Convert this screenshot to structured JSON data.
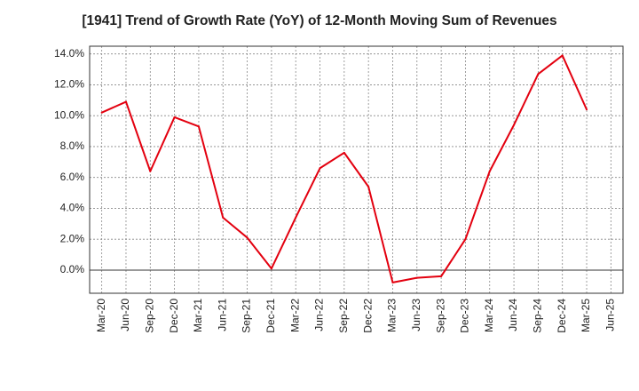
{
  "chart_data": {
    "type": "line",
    "title": "[1941]  Trend of Growth Rate (YoY) of 12-Month Moving Sum of Revenues",
    "xlabel": "",
    "ylabel": "",
    "x_ticks": [
      "Mar-20",
      "Jun-20",
      "Sep-20",
      "Dec-20",
      "Mar-21",
      "Jun-21",
      "Sep-21",
      "Dec-21",
      "Mar-22",
      "Jun-22",
      "Sep-22",
      "Dec-22",
      "Mar-23",
      "Jun-23",
      "Sep-23",
      "Dec-23",
      "Mar-24",
      "Jun-24",
      "Sep-24",
      "Dec-24",
      "Mar-25",
      "Jun-25"
    ],
    "y_ticks": [
      "0.0%",
      "2.0%",
      "4.0%",
      "6.0%",
      "8.0%",
      "10.0%",
      "12.0%",
      "14.0%"
    ],
    "ylim": [
      -1.5,
      14.5
    ],
    "grid": true,
    "series": [
      {
        "color": "#e3000f",
        "x": [
          "Mar-20",
          "Jun-20",
          "Sep-20",
          "Dec-20",
          "Mar-21",
          "Jun-21",
          "Sep-21",
          "Dec-21",
          "Mar-22",
          "Jun-22",
          "Sep-22",
          "Dec-22",
          "Mar-23",
          "Jun-23",
          "Sep-23",
          "Dec-23",
          "Mar-24",
          "Jun-24",
          "Sep-24",
          "Dec-24",
          "Mar-25"
        ],
        "values": [
          10.2,
          10.9,
          6.4,
          9.9,
          9.3,
          3.4,
          2.1,
          0.1,
          3.4,
          6.6,
          7.6,
          5.4,
          -0.8,
          -0.5,
          -0.4,
          2.0,
          6.4,
          9.4,
          12.7,
          13.9,
          10.4
        ]
      }
    ]
  }
}
